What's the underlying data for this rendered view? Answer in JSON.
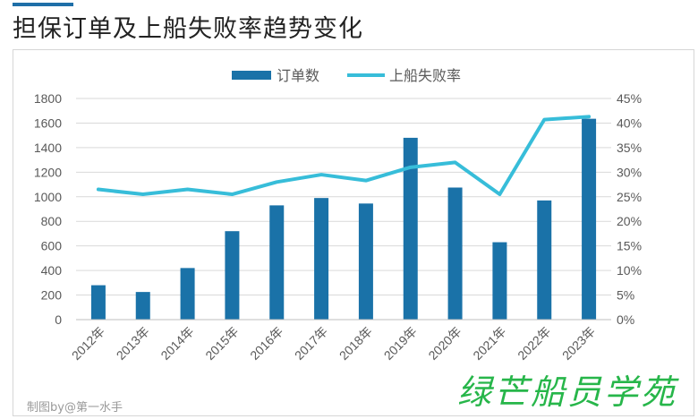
{
  "title": "担保订单及上船失败率趋势变化",
  "credit": "制图by@第一水手",
  "watermark": "绿芒船员学苑",
  "colors": {
    "bar": "#1a72a8",
    "line": "#37bdd9",
    "axis": "#595959",
    "grid": "#d9d9d9"
  },
  "chart_data": {
    "type": "bar",
    "categories": [
      "2012年",
      "2013年",
      "2014年",
      "2015年",
      "2016年",
      "2017年",
      "2018年",
      "2019年",
      "2020年",
      "2021年",
      "2022年",
      "2023年"
    ],
    "series": [
      {
        "name": "订单数",
        "type": "bar",
        "axis": "left",
        "values": [
          280,
          225,
          420,
          720,
          930,
          990,
          945,
          1480,
          1075,
          630,
          970,
          1635
        ]
      },
      {
        "name": "上船失败率",
        "type": "line",
        "axis": "right",
        "values": [
          26.5,
          25.5,
          26.5,
          25.5,
          28.0,
          29.5,
          28.3,
          31.0,
          32.0,
          25.5,
          40.7,
          41.3
        ]
      }
    ],
    "y_left": {
      "min": 0,
      "max": 1800,
      "step": 200,
      "ticks": [
        "0",
        "200",
        "400",
        "600",
        "800",
        "1000",
        "1200",
        "1400",
        "1600",
        "1800"
      ]
    },
    "y_right": {
      "min": 0,
      "max": 45,
      "step": 5,
      "ticks": [
        "0%",
        "5%",
        "10%",
        "15%",
        "20%",
        "25%",
        "30%",
        "35%",
        "40%",
        "45%"
      ]
    },
    "grid": true,
    "legend": "top-center"
  }
}
